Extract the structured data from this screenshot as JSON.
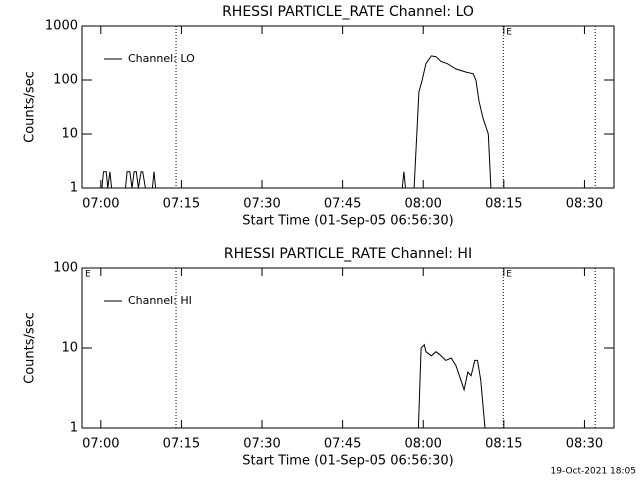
{
  "chart_data": [
    {
      "type": "line",
      "title": "RHESSI PARTICLE_RATE Channel: LO",
      "x_label": "Start Time (01-Sep-05 06:56:30)",
      "y_label": "Counts/sec",
      "log_y": true,
      "xlim": [
        -3.5,
        95.5
      ],
      "ylim": [
        1,
        1000
      ],
      "xticks": [
        {
          "value": 0,
          "label": "07:00"
        },
        {
          "value": 15,
          "label": "07:15"
        },
        {
          "value": 30,
          "label": "07:30"
        },
        {
          "value": 45,
          "label": "07:45"
        },
        {
          "value": 60,
          "label": "08:00"
        },
        {
          "value": 75,
          "label": "08:15"
        },
        {
          "value": 90,
          "label": "08:30"
        }
      ],
      "yticks": [
        1,
        10,
        100,
        1000
      ],
      "vlines": [
        14,
        74.9,
        92
      ],
      "annotations": [
        {
          "x": 74.9,
          "text": "E"
        }
      ],
      "legend": "upper left",
      "series": [
        {
          "name": "Channel: LO",
          "color": "#000000",
          "x": [
            -3.5,
            0.2,
            0.5,
            1.0,
            1.3,
            1.7,
            2.0,
            2.3,
            4.6,
            4.9,
            5.4,
            5.8,
            6.2,
            6.6,
            7.0,
            7.5,
            7.8,
            8.3,
            9.6,
            9.9,
            10.2,
            56.1,
            56.4,
            56.7,
            58.3,
            59.2,
            59.8,
            60.5,
            61.5,
            62.4,
            63.3,
            64.5,
            66.1,
            68.0,
            69.3,
            69.8,
            70.4,
            71.1,
            72.1,
            72.6,
            95.5
          ],
          "values": [
            1,
            1,
            2,
            2,
            1,
            2,
            1,
            1,
            1,
            2,
            2,
            1,
            2,
            2,
            1,
            2,
            2,
            1,
            1,
            2,
            1,
            1,
            2,
            1,
            1,
            60,
            100,
            200,
            280,
            270,
            220,
            200,
            160,
            140,
            130,
            100,
            40,
            20,
            10,
            1,
            1
          ]
        }
      ]
    },
    {
      "type": "line",
      "title": "RHESSI PARTICLE_RATE Channel: HI",
      "x_label": "Start Time (01-Sep-05 06:56:30)",
      "y_label": "Counts/sec",
      "log_y": true,
      "xlim": [
        -3.5,
        95.5
      ],
      "ylim": [
        1,
        100
      ],
      "xticks": [
        {
          "value": 0,
          "label": "07:00"
        },
        {
          "value": 15,
          "label": "07:15"
        },
        {
          "value": 30,
          "label": "07:30"
        },
        {
          "value": 45,
          "label": "07:45"
        },
        {
          "value": 60,
          "label": "08:00"
        },
        {
          "value": 75,
          "label": "08:15"
        },
        {
          "value": 90,
          "label": "08:30"
        }
      ],
      "yticks": [
        1,
        10,
        100
      ],
      "vlines": [
        14,
        74.9,
        92
      ],
      "annotations": [
        {
          "x": -3.5,
          "text": "E"
        },
        {
          "x": 74.9,
          "text": "E"
        }
      ],
      "legend": "upper left",
      "series": [
        {
          "name": "Channel: HI",
          "color": "#000000",
          "x": [
            -3.5,
            59.1,
            59.6,
            60.2,
            60.5,
            61.5,
            62.4,
            63.3,
            64.2,
            65.2,
            66.1,
            67.0,
            67.6,
            68.3,
            68.9,
            69.6,
            70.1,
            70.7,
            71.5,
            95.5
          ],
          "values": [
            1,
            1,
            10,
            11,
            9,
            8,
            9,
            8,
            7,
            7.5,
            6,
            4,
            3,
            5,
            4.5,
            7,
            7,
            4,
            1,
            1
          ]
        }
      ]
    }
  ],
  "footer": "19-Oct-2021 18:05"
}
